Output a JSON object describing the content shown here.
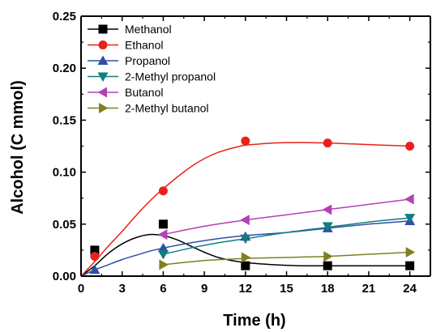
{
  "chart_data": {
    "type": "scatter",
    "xlabel": "Time (h)",
    "ylabel": "Alcohol (C mmol)",
    "xlim": [
      0,
      25.5
    ],
    "ylim": [
      0,
      0.25
    ],
    "x_ticks": [
      "0",
      "3",
      "6",
      "9",
      "12",
      "15",
      "18",
      "21",
      "24"
    ],
    "x_tick_values": [
      0,
      3,
      6,
      9,
      12,
      15,
      18,
      21,
      24
    ],
    "y_ticks": [
      "0.00",
      "0.05",
      "0.10",
      "0.15",
      "0.20",
      "0.25"
    ],
    "y_tick_values": [
      0,
      0.05,
      0.1,
      0.15,
      0.2,
      0.25
    ],
    "grid": false,
    "legend_position": "top-left",
    "series": [
      {
        "name": "Methanol",
        "color": "#000000",
        "marker": "square",
        "points": [
          [
            1,
            0.025
          ],
          [
            6,
            0.05
          ],
          [
            12,
            0.01
          ],
          [
            18,
            0.01
          ],
          [
            24,
            0.01
          ]
        ],
        "fit": [
          [
            0,
            0
          ],
          [
            1,
            0.01
          ],
          [
            2,
            0.022
          ],
          [
            3,
            0.031
          ],
          [
            4,
            0.037
          ],
          [
            5,
            0.04
          ],
          [
            6,
            0.039
          ],
          [
            7,
            0.035
          ],
          [
            8,
            0.029
          ],
          [
            9,
            0.023
          ],
          [
            10,
            0.018
          ],
          [
            11,
            0.015
          ],
          [
            12,
            0.013
          ],
          [
            14,
            0.011
          ],
          [
            16,
            0.01
          ],
          [
            18,
            0.01
          ],
          [
            20,
            0.01
          ],
          [
            24,
            0.01
          ]
        ]
      },
      {
        "name": "Ethanol",
        "color": "#e8221b",
        "marker": "circle",
        "points": [
          [
            1,
            0.019
          ],
          [
            6,
            0.082
          ],
          [
            12,
            0.13
          ],
          [
            18,
            0.128
          ],
          [
            24,
            0.125
          ]
        ],
        "fit": [
          [
            0,
            0
          ],
          [
            1,
            0.014
          ],
          [
            2,
            0.029
          ],
          [
            3,
            0.043
          ],
          [
            4,
            0.058
          ],
          [
            5,
            0.072
          ],
          [
            6,
            0.084
          ],
          [
            7,
            0.095
          ],
          [
            8,
            0.105
          ],
          [
            9,
            0.113
          ],
          [
            10,
            0.119
          ],
          [
            11,
            0.123
          ],
          [
            12,
            0.126
          ],
          [
            13,
            0.127
          ],
          [
            14,
            0.128
          ],
          [
            16,
            0.1285
          ],
          [
            18,
            0.128
          ],
          [
            20,
            0.127
          ],
          [
            22,
            0.126
          ],
          [
            24,
            0.125
          ]
        ]
      },
      {
        "name": "Propanol",
        "color": "#2e4fa8",
        "marker": "triangle-up",
        "points": [
          [
            1,
            0.006
          ],
          [
            6,
            0.027
          ],
          [
            12,
            0.038
          ],
          [
            18,
            0.046
          ],
          [
            24,
            0.053
          ]
        ],
        "fit": [
          [
            0,
            0
          ],
          [
            1,
            0.006
          ],
          [
            2,
            0.011
          ],
          [
            3,
            0.016
          ],
          [
            4,
            0.02
          ],
          [
            5,
            0.024
          ],
          [
            6,
            0.027
          ],
          [
            8,
            0.032
          ],
          [
            10,
            0.036
          ],
          [
            12,
            0.039
          ],
          [
            15,
            0.042
          ],
          [
            18,
            0.046
          ],
          [
            21,
            0.05
          ],
          [
            24,
            0.053
          ]
        ]
      },
      {
        "name": "2-Methyl propanol",
        "color": "#0f7e80",
        "marker": "triangle-down",
        "points": [
          [
            6,
            0.021
          ],
          [
            12,
            0.036
          ],
          [
            18,
            0.048
          ],
          [
            24,
            0.056
          ]
        ],
        "fit": [
          [
            6,
            0.021
          ],
          [
            8,
            0.027
          ],
          [
            10,
            0.032
          ],
          [
            12,
            0.036
          ],
          [
            15,
            0.042
          ],
          [
            18,
            0.047
          ],
          [
            21,
            0.052
          ],
          [
            24,
            0.056
          ]
        ]
      },
      {
        "name": "Butanol",
        "color": "#b540b5",
        "marker": "triangle-left",
        "points": [
          [
            6,
            0.04
          ],
          [
            12,
            0.054
          ],
          [
            18,
            0.064
          ],
          [
            24,
            0.074
          ]
        ],
        "fit": [
          [
            6,
            0.04
          ],
          [
            9,
            0.048
          ],
          [
            12,
            0.054
          ],
          [
            15,
            0.059
          ],
          [
            18,
            0.064
          ],
          [
            21,
            0.069
          ],
          [
            24,
            0.074
          ]
        ]
      },
      {
        "name": "2-Methyl butanol",
        "color": "#808020",
        "marker": "triangle-right",
        "points": [
          [
            6,
            0.011
          ],
          [
            12,
            0.018
          ],
          [
            18,
            0.019
          ],
          [
            24,
            0.023
          ]
        ],
        "fit": [
          [
            6,
            0.011
          ],
          [
            9,
            0.015
          ],
          [
            12,
            0.017
          ],
          [
            15,
            0.018
          ],
          [
            18,
            0.019
          ],
          [
            21,
            0.021
          ],
          [
            24,
            0.023
          ]
        ]
      }
    ]
  }
}
